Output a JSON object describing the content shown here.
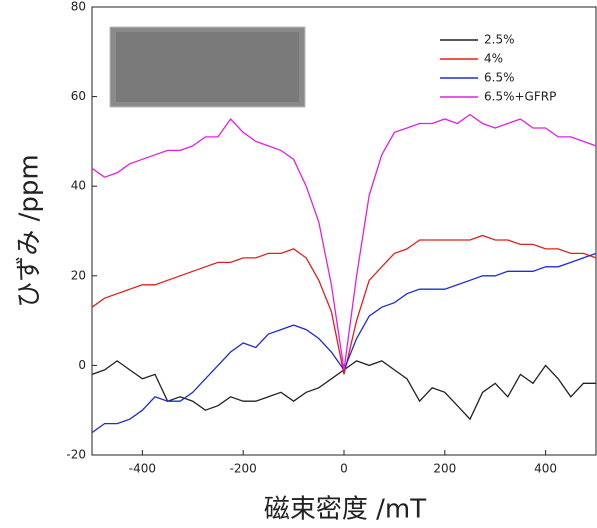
{
  "chart_data": {
    "type": "line",
    "x_label": "磁束密度 /mT",
    "y_label": "ひずみ /ppm",
    "xlim": [
      -500,
      500
    ],
    "xticks": [
      -400,
      -200,
      0,
      200,
      400
    ],
    "ylim": [
      -20,
      80
    ],
    "yticks": [
      -20,
      0,
      20,
      40,
      60,
      80
    ],
    "x": [
      -500,
      -475,
      -450,
      -425,
      -400,
      -375,
      -350,
      -325,
      -300,
      -275,
      -250,
      -225,
      -200,
      -175,
      -150,
      -125,
      -100,
      -75,
      -50,
      -25,
      0,
      25,
      50,
      75,
      100,
      125,
      150,
      175,
      200,
      225,
      250,
      275,
      300,
      325,
      350,
      375,
      400,
      425,
      450,
      475,
      500
    ],
    "legend": "upper right",
    "series": [
      {
        "name": "2.5%",
        "color": "#222222",
        "values": [
          -2,
          -1,
          1,
          -1,
          -3,
          -2,
          -8,
          -7,
          -8,
          -10,
          -9,
          -7,
          -8,
          -8,
          -7,
          -6,
          -8,
          -6,
          -5,
          -3,
          -1,
          1,
          0,
          1,
          -1,
          -3,
          -8,
          -5,
          -6,
          -9,
          -12,
          -6,
          -4,
          -7,
          -2,
          -4,
          0,
          -3,
          -7,
          -4,
          -4
        ]
      },
      {
        "name": "4%",
        "color": "#e0201c",
        "values": [
          13,
          15,
          16,
          17,
          18,
          18,
          19,
          20,
          21,
          22,
          23,
          23,
          24,
          24,
          25,
          25,
          26,
          24,
          19,
          12,
          -2,
          10,
          19,
          22,
          25,
          26,
          28,
          28,
          28,
          28,
          28,
          29,
          28,
          28,
          27,
          27,
          26,
          26,
          25,
          25,
          24
        ]
      },
      {
        "name": "6.5%",
        "color": "#1f2bd6",
        "values": [
          -15,
          -13,
          -13,
          -12,
          -10,
          -7,
          -8,
          -8,
          -6,
          -3,
          0,
          3,
          5,
          4,
          7,
          8,
          9,
          8,
          6,
          3,
          -1,
          6,
          11,
          13,
          14,
          16,
          17,
          17,
          17,
          18,
          19,
          20,
          20,
          21,
          21,
          21,
          22,
          22,
          23,
          24,
          25
        ]
      },
      {
        "name": "6.5%+GFRP",
        "color": "#e020e0",
        "values": [
          44,
          42,
          43,
          45,
          46,
          47,
          48,
          48,
          49,
          51,
          51,
          55,
          52,
          50,
          49,
          48,
          46,
          40,
          32,
          18,
          -1,
          20,
          38,
          47,
          52,
          53,
          54,
          54,
          55,
          54,
          56,
          54,
          53,
          54,
          55,
          53,
          53,
          51,
          51,
          50,
          49
        ]
      }
    ]
  }
}
